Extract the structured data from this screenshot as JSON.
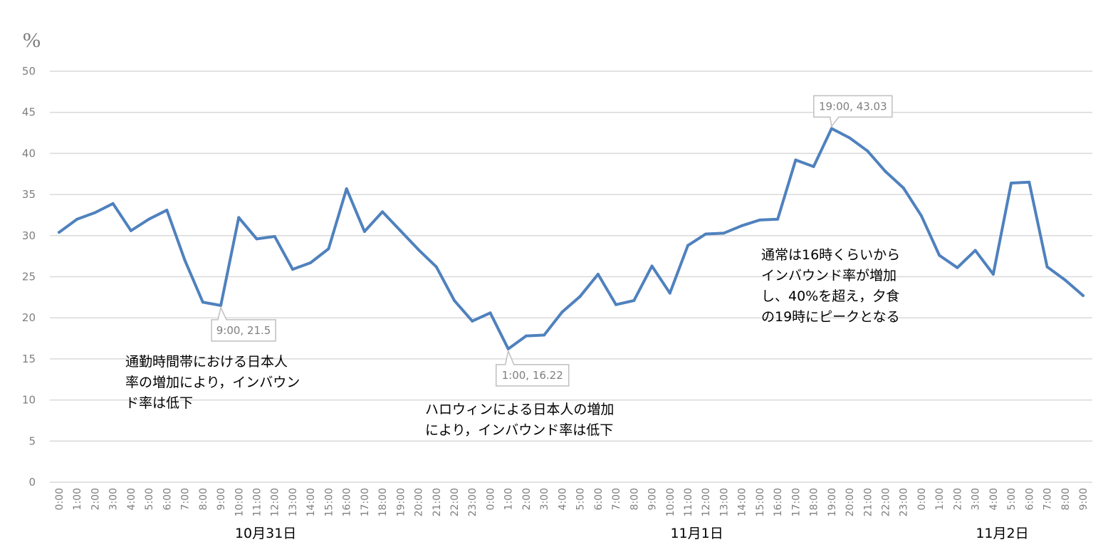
{
  "chart_data": {
    "type": "line",
    "ylabel": "%",
    "ylim": [
      0,
      50
    ],
    "yticks": [
      0,
      5,
      10,
      15,
      20,
      25,
      30,
      35,
      40,
      45,
      50
    ],
    "grid": true,
    "line_color": "#4F81BD",
    "categories": [
      "0:00",
      "1:00",
      "2:00",
      "3:00",
      "4:00",
      "5:00",
      "6:00",
      "7:00",
      "8:00",
      "9:00",
      "10:00",
      "11:00",
      "12:00",
      "13:00",
      "14:00",
      "15:00",
      "16:00",
      "17:00",
      "18:00",
      "19:00",
      "20:00",
      "21:00",
      "22:00",
      "23:00",
      "0:00",
      "1:00",
      "2:00",
      "3:00",
      "4:00",
      "5:00",
      "6:00",
      "7:00",
      "8:00",
      "9:00",
      "10:00",
      "11:00",
      "12:00",
      "13:00",
      "14:00",
      "15:00",
      "16:00",
      "17:00",
      "18:00",
      "19:00",
      "20:00",
      "21:00",
      "22:00",
      "23:00",
      "0:00",
      "1:00",
      "2:00",
      "3:00",
      "4:00",
      "5:00",
      "6:00",
      "7:00",
      "8:00",
      "9:00"
    ],
    "series": [
      {
        "values": [
          30.4,
          32.0,
          32.8,
          33.9,
          30.6,
          32.0,
          33.1,
          27.0,
          21.9,
          21.5,
          32.2,
          29.6,
          29.9,
          25.9,
          26.7,
          28.4,
          35.7,
          30.5,
          32.9,
          30.6,
          28.3,
          26.2,
          22.1,
          19.6,
          20.6,
          16.22,
          17.8,
          17.9,
          20.7,
          22.6,
          25.3,
          21.6,
          22.1,
          26.3,
          23.0,
          28.8,
          30.2,
          30.3,
          31.2,
          31.9,
          32.0,
          39.2,
          38.4,
          43.03,
          41.9,
          40.3,
          37.8,
          35.8,
          32.4,
          27.6,
          26.1,
          28.2,
          25.3,
          36.4,
          36.5,
          26.2,
          24.6,
          22.7
        ]
      }
    ],
    "date_groups": [
      {
        "label": "10月31日"
      },
      {
        "label": "11月1日"
      },
      {
        "label": "11月2日"
      }
    ],
    "data_labels": [
      {
        "index": 9,
        "text": "9:00, 21.5"
      },
      {
        "index": 25,
        "text": "1:00, 16.22"
      },
      {
        "index": 43,
        "text": "19:00, 43.03"
      }
    ],
    "annotations": [
      {
        "lines": [
          "通勤時間帯における日本人",
          "率の増加により，インバウン",
          "ド率は低下"
        ]
      },
      {
        "lines": [
          "ハロウィンによる日本人の増加",
          "により，インバウンド率は低下"
        ]
      },
      {
        "lines": [
          "通常は16時くらいから",
          "インバウンド率が増加",
          "し、40%を超え，夕食",
          "の19時にピークとなる"
        ]
      }
    ]
  }
}
